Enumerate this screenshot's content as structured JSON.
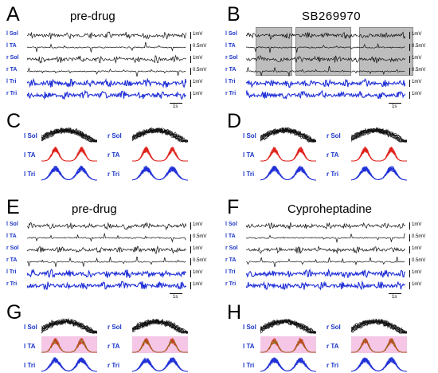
{
  "colors": {
    "emg_black": "#111111",
    "tri_blue": "#1f2fd6",
    "label_blue": "#1a34c8",
    "ta_red": "#e0201a",
    "shading_gray": "#bdbdbd",
    "pink_highlight": "#f5c6e6",
    "olive_trace": "#8c7a1e"
  },
  "time_scale_label": "1s",
  "panels": {
    "A": {
      "letter": "A",
      "title": "pre-drug"
    },
    "B": {
      "letter": "B",
      "title": "SB269970"
    },
    "C": {
      "letter": "C"
    },
    "D": {
      "letter": "D"
    },
    "E": {
      "letter": "E",
      "title": "pre-drug"
    },
    "F": {
      "letter": "F",
      "title": "Cyproheptadine"
    },
    "G": {
      "letter": "G"
    },
    "H": {
      "letter": "H"
    }
  },
  "trace_rows": [
    {
      "label": "l Sol",
      "scale": "1mV"
    },
    {
      "label": "l TA",
      "scale": "0.5mV"
    },
    {
      "label": "r Sol",
      "scale": "1mV"
    },
    {
      "label": "r TA",
      "scale": "0.5mV"
    },
    {
      "label": "l Tri",
      "scale": "1mV"
    },
    {
      "label": "r Tri",
      "scale": "1mV"
    }
  ],
  "overlay_rows": {
    "left_labels": [
      "l Sol",
      "l TA",
      "l Tri"
    ],
    "right_labels": [
      "r Sol",
      "r TA",
      "r Tri"
    ]
  }
}
